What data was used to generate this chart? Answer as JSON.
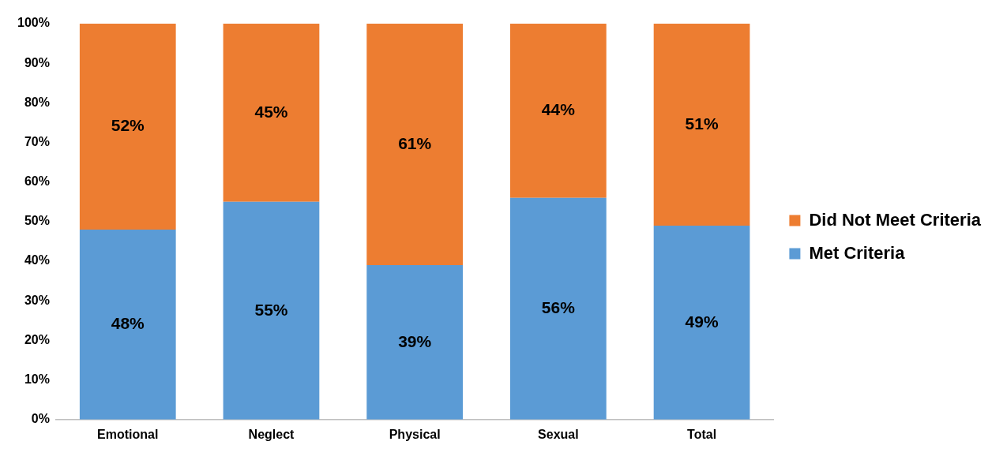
{
  "chart_data": {
    "type": "bar",
    "stacked": true,
    "categories": [
      "Emotional",
      "Neglect",
      "Physical",
      "Sexual",
      "Total"
    ],
    "series": [
      {
        "name": "Met Criteria",
        "color": "#5b9bd5",
        "values": [
          48,
          55,
          39,
          56,
          49
        ],
        "value_labels": [
          "48%",
          "55%",
          "39%",
          "56%",
          "49%"
        ]
      },
      {
        "name": "Did Not Meet Criteria",
        "color": "#ed7d31",
        "values": [
          52,
          45,
          61,
          44,
          51
        ],
        "value_labels": [
          "52%",
          "45%",
          "61%",
          "44%",
          "51%"
        ]
      }
    ],
    "ylim": [
      0,
      100
    ],
    "yticks": [
      {
        "value": 0,
        "label": "0%"
      },
      {
        "value": 10,
        "label": "10%"
      },
      {
        "value": 20,
        "label": "20%"
      },
      {
        "value": 30,
        "label": "30%"
      },
      {
        "value": 40,
        "label": "40%"
      },
      {
        "value": 50,
        "label": "50%"
      },
      {
        "value": 60,
        "label": "60%"
      },
      {
        "value": 70,
        "label": "70%"
      },
      {
        "value": 80,
        "label": "80%"
      },
      {
        "value": 90,
        "label": "90%"
      },
      {
        "value": 100,
        "label": "100%"
      }
    ],
    "grid": false,
    "legend": "right"
  }
}
